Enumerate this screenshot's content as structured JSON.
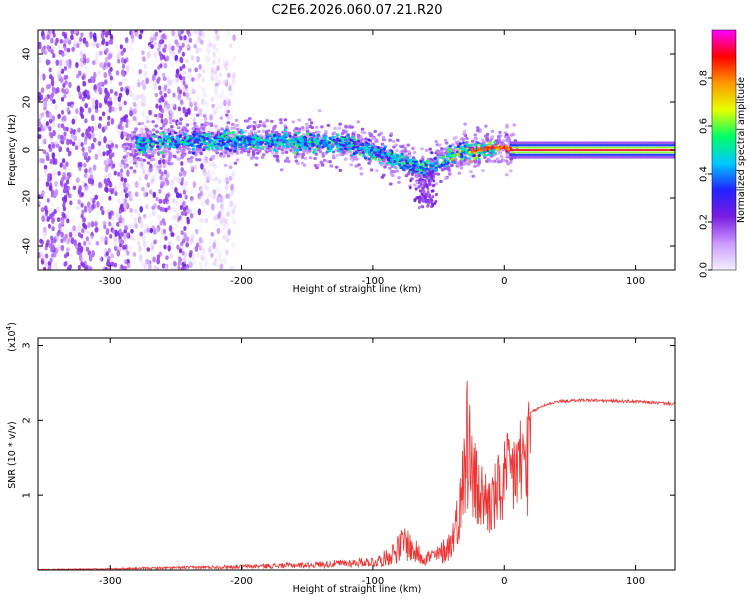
{
  "title": "C2E6.2026.060.07.21.R20",
  "chart_data": [
    {
      "type": "heatmap",
      "xlabel": "Height of straight line (km)",
      "ylabel": "Frequency (Hz)",
      "xlim": [
        -355,
        130
      ],
      "ylim": [
        -50,
        50
      ],
      "x_ticks": [
        -300,
        -200,
        -100,
        0,
        100
      ],
      "y_ticks": [
        -40,
        -20,
        0,
        20,
        40
      ],
      "colorbar": {
        "label": "Normalized spectral amplitude",
        "range": [
          0,
          1
        ],
        "ticks": [
          0.0,
          0.2,
          0.4,
          0.6,
          0.8
        ],
        "tick_labels": [
          "0.0",
          "0.2",
          "0.4",
          "0.6",
          "0.8"
        ],
        "colors": [
          "#f2f2ff",
          "#cc99ff",
          "#7a1de0",
          "#2222ff",
          "#00c8ff",
          "#00ff66",
          "#e6ff00",
          "#ff9900",
          "#ff0000",
          "#ff00ff"
        ]
      },
      "ridge": {
        "description": "central frequency of strong spectral energy",
        "x": [
          -280,
          -250,
          -200,
          -150,
          -120,
          -100,
          -80,
          -60,
          -50,
          -40,
          -30,
          -20,
          -10,
          0,
          10,
          130
        ],
        "y": [
          2,
          4,
          4,
          3,
          3,
          0,
          -4,
          -8,
          -6,
          -2,
          0,
          0,
          1,
          1,
          0,
          0
        ]
      }
    },
    {
      "type": "line",
      "xlabel": "Height of straight line (km)",
      "ylabel": "SNR (10 * v/v)",
      "y_multiplier": "(x10",
      "y_multiplier_exp": "4",
      "y_multiplier_close": ")",
      "xlim": [
        -355,
        130
      ],
      "ylim": [
        0,
        3.1
      ],
      "x_ticks": [
        -300,
        -200,
        -100,
        0,
        100
      ],
      "y_ticks": [
        1,
        2,
        3
      ],
      "series": [
        {
          "name": "SNR",
          "color": "#ee3333",
          "envelope_x": [
            -355,
            -300,
            -250,
            -200,
            -150,
            -120,
            -100,
            -90,
            -80,
            -75,
            -70,
            -60,
            -50,
            -40,
            -35,
            -30,
            -27,
            -25,
            -20,
            -15,
            -10,
            -5,
            0,
            10,
            20,
            30,
            40,
            60,
            80,
            100,
            130
          ],
          "envelope_y": [
            0.01,
            0.02,
            0.04,
            0.06,
            0.09,
            0.12,
            0.15,
            0.25,
            0.45,
            0.6,
            0.4,
            0.25,
            0.3,
            0.55,
            1.0,
            1.6,
            2.6,
            1.8,
            1.4,
            1.3,
            1.2,
            1.4,
            1.6,
            1.9,
            2.1,
            2.2,
            2.25,
            2.27,
            2.26,
            2.25,
            2.22
          ]
        }
      ]
    }
  ]
}
